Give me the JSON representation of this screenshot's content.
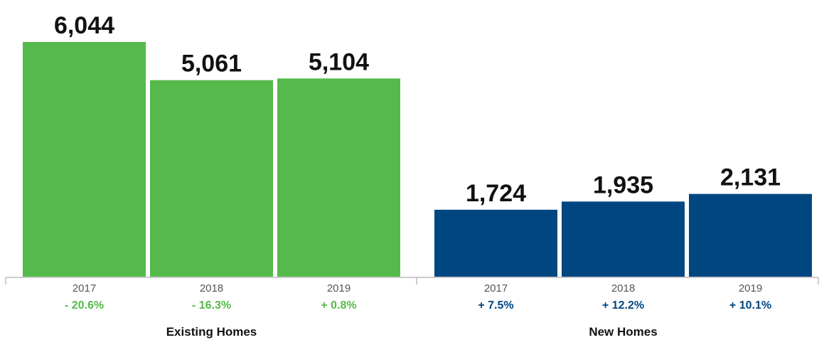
{
  "chart_data": {
    "type": "bar",
    "ylim": [
      0,
      6044
    ],
    "groups": [
      {
        "label": "Existing Homes",
        "color": "#55b94b",
        "bars": [
          {
            "year": "2017",
            "value": 6044,
            "value_label": "6,044",
            "change": "- 20.6%"
          },
          {
            "year": "2018",
            "value": 5061,
            "value_label": "5,061",
            "change": "- 16.3%"
          },
          {
            "year": "2019",
            "value": 5104,
            "value_label": "5,104",
            "change": "+ 0.8%"
          }
        ]
      },
      {
        "label": "New Homes",
        "color": "#004680",
        "bars": [
          {
            "year": "2017",
            "value": 1724,
            "value_label": "1,724",
            "change": "+ 7.5%"
          },
          {
            "year": "2018",
            "value": 1935,
            "value_label": "1,935",
            "change": "+ 12.2%"
          },
          {
            "year": "2019",
            "value": 2131,
            "value_label": "2,131",
            "change": "+ 10.1%"
          }
        ]
      }
    ]
  }
}
